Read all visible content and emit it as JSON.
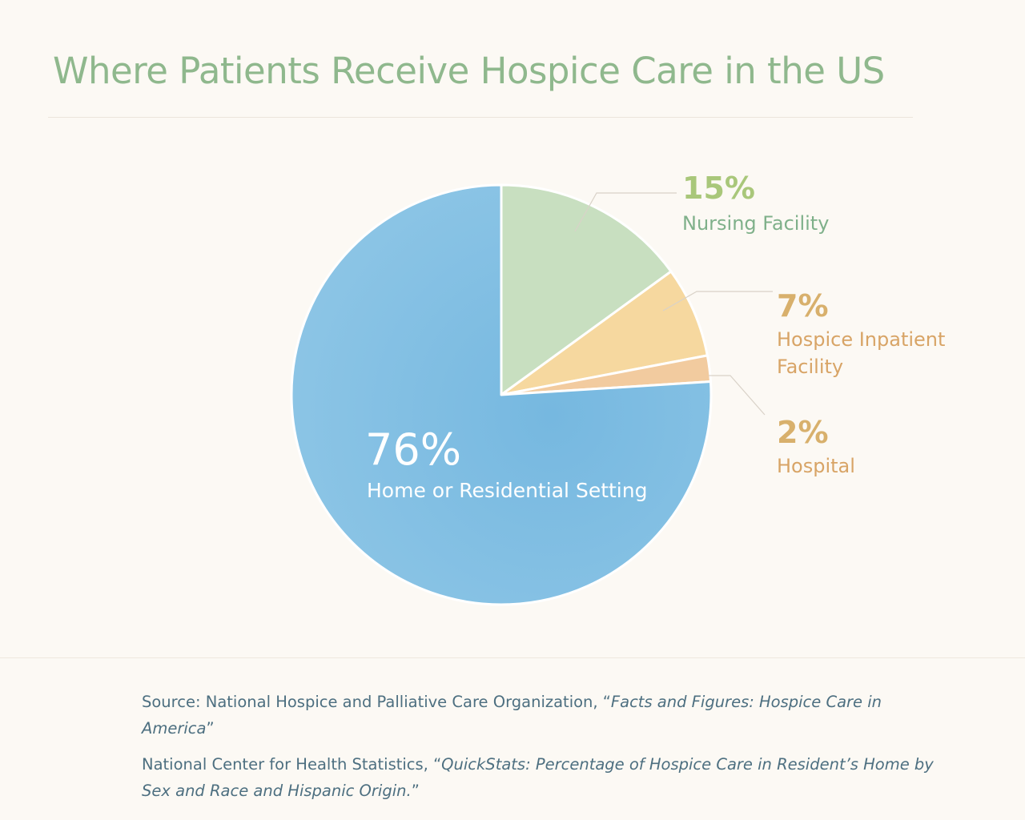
{
  "title": "Where Patients Receive Hospice Care in the US",
  "colors": {
    "home": "#82c0e3",
    "nursing": "#c8dfc0",
    "hospice": "#f6d89f",
    "hospital": "#f2cb9f",
    "title": "#8fb88d",
    "source_text": "#4d6f80",
    "background": "#fcf9f4"
  },
  "chart_data": {
    "type": "pie",
    "title": "Where Patients Receive Hospice Care in the US",
    "start": "12 o'clock",
    "direction": "clockwise",
    "slices": [
      {
        "label": "Nursing Facility",
        "value": 15,
        "display": "15%"
      },
      {
        "label": "Hospice Inpatient Facility",
        "label_lines": [
          "Hospice Inpatient",
          "Facility"
        ],
        "value": 7,
        "display": "7%"
      },
      {
        "label": "Hospital",
        "value": 2,
        "display": "2%"
      },
      {
        "label": "Home or Residential Setting",
        "value": 76,
        "display": "76%"
      }
    ]
  },
  "sources": {
    "line1_prefix": "Source: National Hospice and Palliative Care Organization, “",
    "line1_italic": "Facts and Figures: Hospice Care in America",
    "line1_suffix": "”",
    "line2_prefix": "National Center for Health Statistics, “",
    "line2_italic": "QuickStats: Percentage of Hospice Care in Resident’s Home by Sex and Race and Hispanic Origin.",
    "line2_suffix": "”"
  }
}
